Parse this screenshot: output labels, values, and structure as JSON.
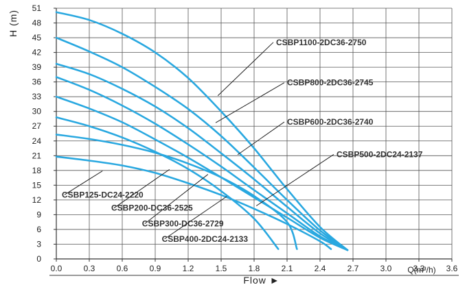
{
  "chart_data": {
    "type": "line",
    "title": "",
    "xlabel": "Q(m³/h)",
    "ylabel": "H (m)",
    "flow_label": "Flow ►",
    "xlim": [
      0,
      3.6
    ],
    "ylim": [
      0,
      51
    ],
    "x_ticks": [
      "0.0",
      "0.3",
      "0.6",
      "0.9",
      "1.2",
      "1.5",
      "1.8",
      "2.1",
      "2.4",
      "2.7",
      "3.0",
      "3.3",
      "3.6"
    ],
    "y_ticks": [
      "0",
      "3",
      "6",
      "9",
      "12",
      "15",
      "18",
      "21",
      "24",
      "27",
      "30",
      "33",
      "36",
      "39",
      "42",
      "45",
      "48",
      "51"
    ],
    "grid": true,
    "line_color": "#29a8e0",
    "label_color": "#333333",
    "series": [
      {
        "name": "CSBP1100-2DC36-2750",
        "x": [
          0.0,
          0.3,
          0.6,
          0.9,
          1.2,
          1.5,
          1.8,
          2.1,
          2.4,
          2.65
        ],
        "y": [
          50.2,
          48.6,
          45.8,
          42.0,
          36.8,
          30.0,
          22.5,
          14.2,
          6.5,
          1.8
        ]
      },
      {
        "name": "CSBP800-2DC36-2745",
        "x": [
          0.0,
          0.3,
          0.6,
          0.9,
          1.2,
          1.5,
          1.8,
          2.1,
          2.4,
          2.65
        ],
        "y": [
          45.0,
          42.2,
          39.0,
          35.0,
          30.5,
          25.0,
          18.6,
          12.0,
          5.8,
          1.8
        ]
      },
      {
        "name": "CSBP600-2DC36-2740",
        "x": [
          0.0,
          0.3,
          0.6,
          0.9,
          1.2,
          1.5,
          1.8,
          2.1,
          2.4,
          2.65
        ],
        "y": [
          39.7,
          37.6,
          34.6,
          31.0,
          26.6,
          21.5,
          16.2,
          10.6,
          5.2,
          1.8
        ]
      },
      {
        "name": "CSBP500-2DC24-2137",
        "x": [
          0.0,
          0.3,
          0.6,
          0.9,
          1.2,
          1.5,
          1.8,
          2.1,
          2.4,
          2.65
        ],
        "y": [
          37.0,
          34.4,
          31.2,
          27.5,
          23.3,
          18.8,
          14.0,
          9.3,
          4.6,
          1.8
        ]
      },
      {
        "name": "CSBP400-2DC24-2133",
        "x": [
          0.0,
          0.3,
          0.6,
          0.9,
          1.2,
          1.5,
          1.8,
          2.1,
          2.4,
          2.65
        ],
        "y": [
          33.0,
          30.6,
          27.8,
          24.3,
          20.6,
          16.6,
          12.5,
          8.4,
          4.3,
          1.8
        ]
      },
      {
        "name": "CSBP300-DC36-2729",
        "x": [
          0.0,
          0.3,
          0.6,
          0.9,
          1.2,
          1.5,
          1.8,
          2.02
        ],
        "y": [
          28.8,
          27.0,
          24.7,
          21.8,
          18.3,
          13.8,
          8.2,
          2.0
        ]
      },
      {
        "name": "CSBP200-DC36-2525",
        "x": [
          0.0,
          0.3,
          0.6,
          0.9,
          1.2,
          1.5,
          1.8,
          2.1,
          2.19
        ],
        "y": [
          25.3,
          24.4,
          23.2,
          21.6,
          19.4,
          16.6,
          12.8,
          7.5,
          2.0
        ]
      },
      {
        "name": "CSBP125-DC24-2220",
        "x": [
          0.0,
          0.3,
          0.6,
          0.9,
          1.2,
          1.5,
          1.8,
          2.1,
          2.4,
          2.5
        ],
        "y": [
          20.8,
          20.0,
          19.0,
          17.5,
          15.4,
          13.0,
          10.2,
          7.1,
          3.6,
          2.0
        ]
      }
    ],
    "annotations": [
      {
        "text": "CSBP1100-2DC36-2750",
        "series": "CSBP1100-2DC36-2750",
        "at_x": 1.47,
        "at_y": 33.2,
        "text_x": 2.0,
        "text_y": 43.5
      },
      {
        "text": "CSBP800-2DC36-2745",
        "series": "CSBP800-2DC36-2745",
        "at_x": 1.45,
        "at_y": 27.7,
        "text_x": 2.1,
        "text_y": 35.3
      },
      {
        "text": "CSBP600-2DC36-2740",
        "series": "CSBP600-2DC36-2740",
        "at_x": 1.65,
        "at_y": 21.2,
        "text_x": 2.1,
        "text_y": 27.3
      },
      {
        "text": "CSBP500-2DC24-2137",
        "series": "CSBP500-2DC24-2137",
        "at_x": 1.82,
        "at_y": 10.8,
        "text_x": 2.55,
        "text_y": 20.7
      },
      {
        "text": "CSBP125-DC24-2220",
        "series": "CSBP125-DC24-2220",
        "at_x": 0.42,
        "at_y": 17.9,
        "text_x": 0.05,
        "text_y": 12.5
      },
      {
        "text": "CSBP200-DC36-2525",
        "series": "CSBP200-DC36-2525",
        "at_x": 1.03,
        "at_y": 18.2,
        "text_x": 0.5,
        "text_y": 9.8
      },
      {
        "text": "CSBP300-DC36-2729",
        "series": "CSBP300-DC36-2729",
        "at_x": 1.38,
        "at_y": 17.2,
        "text_x": 0.78,
        "text_y": 6.6
      },
      {
        "text": "CSBP400-2DC24-2133",
        "series": "CSBP400-2DC24-2133",
        "at_x": 1.55,
        "at_y": 12.7,
        "text_x": 0.96,
        "text_y": 3.5
      }
    ]
  }
}
